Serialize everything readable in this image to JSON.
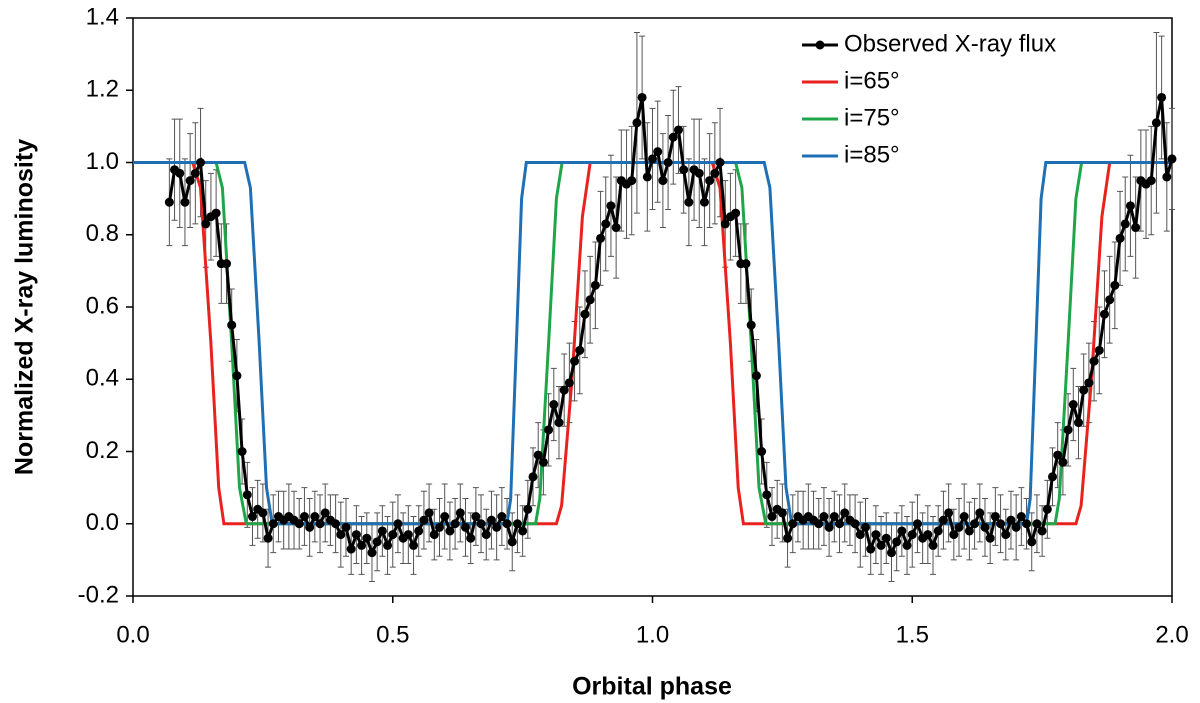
{
  "chart_data": {
    "type": "line",
    "x_label": "Orbital phase",
    "y_label": "Normalized X-ray luminosity",
    "xlim": [
      0,
      2
    ],
    "ylim": [
      -0.2,
      1.4
    ],
    "xticks": [
      {
        "value": 0,
        "label": "0.0"
      },
      0.5,
      {
        "value": 1,
        "label": "1.0"
      },
      1.5,
      {
        "value": 2,
        "label": "2.0"
      }
    ],
    "yticks": [
      -0.2,
      {
        "value": 0,
        "label": "0.0"
      },
      0.2,
      0.4,
      0.6,
      0.8,
      {
        "value": 1,
        "label": "1.0"
      },
      1.2,
      1.4
    ],
    "legend": "upper right",
    "series": [
      {
        "name": "Observed X-ray flux",
        "color": "#000000",
        "x": [
          0.07,
          0.08,
          0.09,
          0.1,
          0.11,
          0.12,
          0.13,
          0.14,
          0.15,
          0.16,
          0.17,
          0.18,
          0.19,
          0.2,
          0.21,
          0.22,
          0.23,
          0.24,
          0.25,
          0.26,
          0.27,
          0.28,
          0.29,
          0.3,
          0.31,
          0.32,
          0.33,
          0.34,
          0.35,
          0.36,
          0.37,
          0.38,
          0.39,
          0.4,
          0.41,
          0.42,
          0.43,
          0.44,
          0.45,
          0.46,
          0.47,
          0.48,
          0.49,
          0.5,
          0.51,
          0.52,
          0.53,
          0.54,
          0.55,
          0.56,
          0.57,
          0.58,
          0.59,
          0.6,
          0.61,
          0.62,
          0.63,
          0.64,
          0.65,
          0.66,
          0.67,
          0.68,
          0.69,
          0.7,
          0.71,
          0.72,
          0.73,
          0.74,
          0.75,
          0.76,
          0.77,
          0.78,
          0.79,
          0.8,
          0.81,
          0.82,
          0.83,
          0.84,
          0.85,
          0.86,
          0.87,
          0.88,
          0.89,
          0.9,
          0.91,
          0.92,
          0.93,
          0.94,
          0.95,
          0.96,
          0.97,
          0.98,
          0.99,
          1.0,
          1.01,
          1.02,
          1.03,
          1.04,
          1.05,
          1.06,
          1.07,
          1.08,
          1.09,
          1.1,
          1.11,
          1.12,
          1.13,
          1.14,
          1.15,
          1.16,
          1.17,
          1.18,
          1.19,
          1.2,
          1.21,
          1.22,
          1.23,
          1.24,
          1.25,
          1.26,
          1.27,
          1.28,
          1.29,
          1.3,
          1.31,
          1.32,
          1.33,
          1.34,
          1.35,
          1.36,
          1.37,
          1.38,
          1.39,
          1.4,
          1.41,
          1.42,
          1.43,
          1.44,
          1.45,
          1.46,
          1.47,
          1.48,
          1.49,
          1.5,
          1.51,
          1.52,
          1.53,
          1.54,
          1.55,
          1.56,
          1.57,
          1.58,
          1.59,
          1.6,
          1.61,
          1.62,
          1.63,
          1.64,
          1.65,
          1.66,
          1.67,
          1.68,
          1.69,
          1.7,
          1.71,
          1.72,
          1.73,
          1.74,
          1.75,
          1.76,
          1.77,
          1.78,
          1.79,
          1.8,
          1.81,
          1.82,
          1.83,
          1.84,
          1.85,
          1.86,
          1.87,
          1.88,
          1.89,
          1.9,
          1.91,
          1.92,
          1.93,
          1.94,
          1.95,
          1.96,
          1.97,
          1.98,
          1.99,
          2.0
        ],
        "values": [
          0.89,
          0.98,
          0.97,
          0.89,
          0.95,
          0.97,
          1.0,
          0.83,
          0.85,
          0.86,
          0.72,
          0.72,
          0.55,
          0.41,
          0.2,
          0.08,
          0.02,
          0.04,
          0.03,
          -0.04,
          0.0,
          0.02,
          0.01,
          0.02,
          0.01,
          0.0,
          0.02,
          -0.01,
          0.02,
          0.0,
          0.03,
          0.01,
          0.0,
          -0.03,
          -0.01,
          -0.07,
          -0.03,
          -0.06,
          -0.04,
          -0.08,
          -0.05,
          -0.02,
          -0.06,
          -0.03,
          0.0,
          -0.04,
          -0.03,
          -0.06,
          -0.02,
          0.01,
          0.03,
          -0.03,
          -0.01,
          0.02,
          -0.02,
          0.0,
          0.03,
          -0.01,
          -0.04,
          0.02,
          0.0,
          -0.03,
          0.01,
          -0.01,
          0.02,
          0.0,
          -0.05,
          0.0,
          -0.02,
          0.04,
          0.13,
          0.19,
          0.17,
          0.26,
          0.33,
          0.28,
          0.37,
          0.39,
          0.45,
          0.48,
          0.58,
          0.62,
          0.66,
          0.79,
          0.83,
          0.88,
          0.82,
          0.95,
          0.94,
          0.95,
          1.11,
          1.18,
          0.96,
          1.01,
          1.03,
          0.95,
          1.0,
          1.07,
          1.09,
          0.98,
          0.89,
          0.98,
          0.97,
          0.89,
          0.95,
          0.97,
          1.0,
          0.83,
          0.85,
          0.86,
          0.72,
          0.72,
          0.55,
          0.41,
          0.2,
          0.08,
          0.02,
          0.04,
          0.03,
          -0.04,
          0.0,
          0.02,
          0.01,
          0.02,
          0.01,
          0.0,
          0.02,
          -0.01,
          0.02,
          0.0,
          0.03,
          0.01,
          0.0,
          -0.03,
          -0.01,
          -0.07,
          -0.03,
          -0.06,
          -0.04,
          -0.08,
          -0.05,
          -0.02,
          -0.06,
          -0.03,
          0.0,
          -0.04,
          -0.03,
          -0.06,
          -0.02,
          0.01,
          0.03,
          -0.03,
          -0.01,
          0.02,
          -0.02,
          0.0,
          0.03,
          -0.01,
          -0.04,
          0.02,
          0.0,
          -0.03,
          0.01,
          -0.01,
          0.02,
          0.0,
          -0.05,
          0.0,
          -0.02,
          0.04,
          0.13,
          0.19,
          0.17,
          0.26,
          0.33,
          0.28,
          0.37,
          0.39,
          0.45,
          0.48,
          0.58,
          0.62,
          0.66,
          0.79,
          0.83,
          0.88,
          0.82,
          0.95,
          0.94,
          0.95,
          1.11,
          1.18,
          0.96,
          1.01
        ],
        "errors": [
          0.12,
          0.14,
          0.15,
          0.12,
          0.13,
          0.14,
          0.15,
          0.12,
          0.12,
          0.12,
          0.11,
          0.11,
          0.1,
          0.1,
          0.09,
          0.09,
          0.08,
          0.08,
          0.08,
          0.08,
          0.08,
          0.07,
          0.08,
          0.09,
          0.08,
          0.07,
          0.08,
          0.08,
          0.07,
          0.08,
          0.08,
          0.07,
          0.08,
          0.09,
          0.08,
          0.07,
          0.08,
          0.08,
          0.07,
          0.08,
          0.08,
          0.07,
          0.08,
          0.09,
          0.08,
          0.07,
          0.08,
          0.08,
          0.07,
          0.08,
          0.08,
          0.07,
          0.08,
          0.09,
          0.08,
          0.07,
          0.08,
          0.08,
          0.07,
          0.08,
          0.08,
          0.07,
          0.08,
          0.09,
          0.08,
          0.07,
          0.08,
          0.08,
          0.07,
          0.08,
          0.08,
          0.09,
          0.09,
          0.1,
          0.1,
          0.1,
          0.1,
          0.11,
          0.11,
          0.12,
          0.12,
          0.12,
          0.12,
          0.13,
          0.13,
          0.14,
          0.14,
          0.14,
          0.15,
          0.15,
          0.25,
          0.17,
          0.15,
          0.14,
          0.14,
          0.13,
          0.13,
          0.13,
          0.12,
          0.12,
          0.12,
          0.14,
          0.15,
          0.12,
          0.13,
          0.14,
          0.15,
          0.12,
          0.12,
          0.12,
          0.11,
          0.11,
          0.1,
          0.1,
          0.09,
          0.09,
          0.08,
          0.08,
          0.08,
          0.08,
          0.08,
          0.07,
          0.08,
          0.09,
          0.08,
          0.07,
          0.08,
          0.08,
          0.07,
          0.08,
          0.08,
          0.07,
          0.08,
          0.09,
          0.08,
          0.07,
          0.08,
          0.08,
          0.07,
          0.08,
          0.08,
          0.07,
          0.08,
          0.09,
          0.08,
          0.07,
          0.08,
          0.08,
          0.07,
          0.08,
          0.08,
          0.07,
          0.08,
          0.09,
          0.08,
          0.07,
          0.08,
          0.08,
          0.07,
          0.08,
          0.08,
          0.07,
          0.08,
          0.09,
          0.08,
          0.07,
          0.08,
          0.08,
          0.07,
          0.08,
          0.08,
          0.09,
          0.09,
          0.1,
          0.1,
          0.1,
          0.1,
          0.11,
          0.11,
          0.12,
          0.12,
          0.12,
          0.12,
          0.13,
          0.13,
          0.14,
          0.14,
          0.14,
          0.15,
          0.15,
          0.25,
          0.17,
          0.15,
          0.14
        ]
      },
      {
        "name": "i=65°",
        "color": "#e8231f",
        "x": [
          0,
          0.115,
          0.13,
          0.15,
          0.165,
          0.175,
          0.815,
          0.825,
          0.845,
          0.865,
          0.88,
          1.115,
          1.13,
          1.15,
          1.165,
          1.175,
          1.815,
          1.825,
          1.845,
          1.865,
          1.88,
          2.0
        ],
        "values": [
          1,
          1,
          0.93,
          0.5,
          0.1,
          0,
          0,
          0.05,
          0.4,
          0.85,
          1,
          1,
          0.93,
          0.5,
          0.1,
          0,
          0,
          0.05,
          0.4,
          0.85,
          1,
          1
        ]
      },
      {
        "name": "i=75°",
        "color": "#1fa64a",
        "x": [
          0,
          0.16,
          0.172,
          0.19,
          0.205,
          0.218,
          0.775,
          0.783,
          0.8,
          0.815,
          0.826,
          1.16,
          1.172,
          1.19,
          1.205,
          1.218,
          1.775,
          1.783,
          1.8,
          1.815,
          1.826,
          2.0
        ],
        "values": [
          1,
          1,
          0.93,
          0.5,
          0.1,
          0,
          0,
          0.07,
          0.5,
          0.9,
          1,
          1,
          0.93,
          0.5,
          0.1,
          0,
          0,
          0.07,
          0.5,
          0.9,
          1,
          1
        ]
      },
      {
        "name": "i=85°",
        "color": "#1f6fb4",
        "x": [
          0,
          0.215,
          0.226,
          0.243,
          0.257,
          0.268,
          0.72,
          0.727,
          0.738,
          0.748,
          0.757,
          1.215,
          1.226,
          1.243,
          1.257,
          1.268,
          1.72,
          1.727,
          1.738,
          1.748,
          1.757,
          2.0
        ],
        "values": [
          1,
          1,
          0.93,
          0.5,
          0.1,
          0,
          0,
          0.07,
          0.5,
          0.9,
          1,
          1,
          0.93,
          0.5,
          0.1,
          0,
          0,
          0.07,
          0.5,
          0.9,
          1,
          1
        ]
      }
    ]
  }
}
